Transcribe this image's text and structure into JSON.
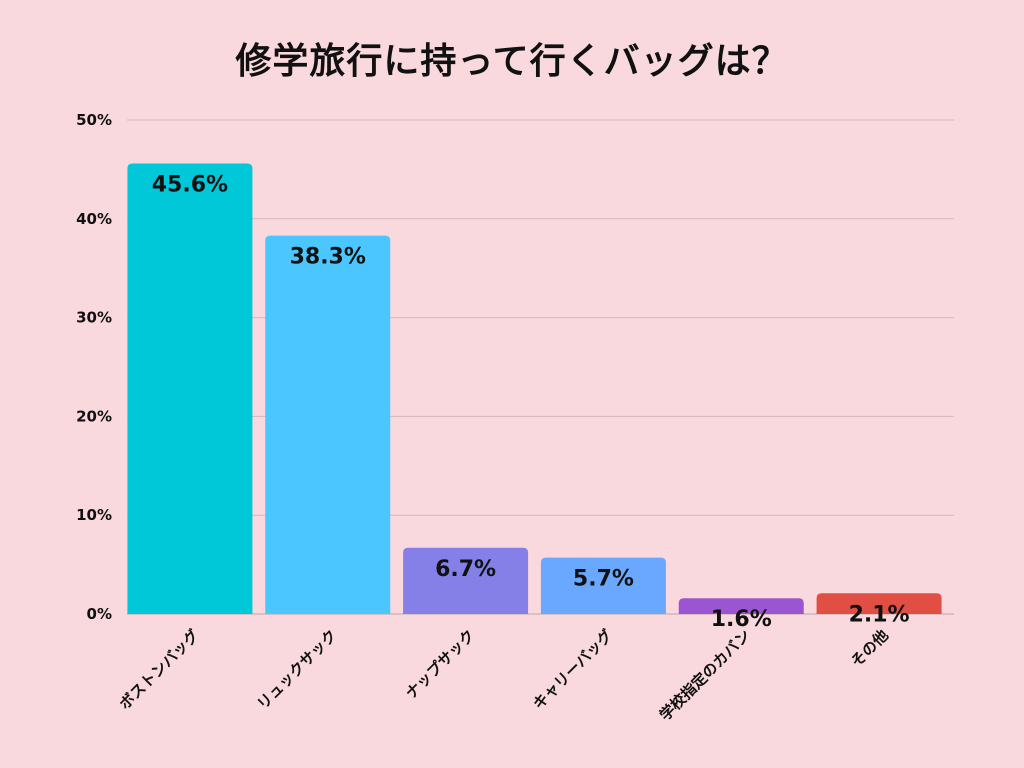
{
  "chart_data": {
    "type": "bar",
    "title": "修学旅行に持って行くバッグは？",
    "categories": [
      "ボストンバッグ",
      "リュックサック",
      "ナップサック",
      "キャリーバッグ",
      "学校指定のカバン",
      "その他"
    ],
    "values": [
      45.6,
      38.3,
      6.7,
      5.7,
      1.6,
      2.1
    ],
    "value_labels": [
      "45.6%",
      "38.3%",
      "6.7%",
      "5.7%",
      "1.6%",
      "2.1%"
    ],
    "bar_colors": [
      "#00c8d8",
      "#4bc6ff",
      "#8480e8",
      "#6aa8ff",
      "#9b55d3",
      "#e04e44"
    ],
    "ylim": [
      0,
      50
    ],
    "yticks": [
      0,
      10,
      20,
      30,
      40,
      50
    ],
    "ytick_labels": [
      "0%",
      "10%",
      "20%",
      "30%",
      "40%",
      "50%"
    ],
    "grid": true,
    "xlabel": "",
    "ylabel": ""
  }
}
